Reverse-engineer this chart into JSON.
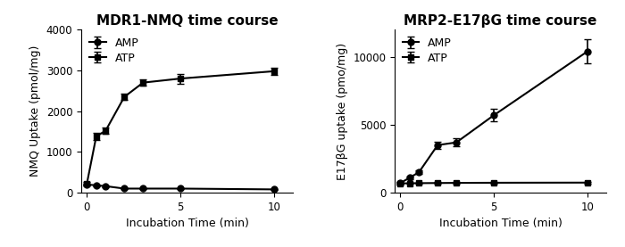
{
  "left_title": "MDR1-NMQ time course",
  "right_title": "MRP2-E17βG time course",
  "left_xlabel": "Incubation Time (min)",
  "right_xlabel": "Incubation Time (min)",
  "left_ylabel": "NMQ Uptake (pmol/mg)",
  "right_ylabel": "E17βG uptake (pmo/mg)",
  "left_AMP_x": [
    0,
    0.5,
    1,
    2,
    3,
    5,
    10
  ],
  "left_AMP_y": [
    200,
    180,
    160,
    100,
    100,
    100,
    80
  ],
  "left_AMP_err": [
    30,
    25,
    20,
    15,
    15,
    15,
    15
  ],
  "left_ATP_x": [
    0,
    0.5,
    1,
    2,
    3,
    5,
    10
  ],
  "left_ATP_y": [
    220,
    1380,
    1520,
    2350,
    2700,
    2800,
    2980
  ],
  "left_ATP_err": [
    40,
    80,
    80,
    80,
    80,
    120,
    80
  ],
  "left_ylim": [
    0,
    4000
  ],
  "left_yticks": [
    0,
    1000,
    2000,
    3000,
    4000
  ],
  "left_xlim": [
    -0.3,
    11
  ],
  "left_xticks": [
    0,
    5,
    10
  ],
  "right_AMP_x": [
    0,
    0.5,
    1,
    2,
    3,
    5,
    10
  ],
  "right_AMP_y": [
    700,
    1100,
    1500,
    3500,
    3700,
    5700,
    10400
  ],
  "right_AMP_err": [
    100,
    100,
    150,
    250,
    300,
    450,
    900
  ],
  "right_ATP_x": [
    0,
    0.5,
    1,
    2,
    3,
    5,
    10
  ],
  "right_ATP_y": [
    680,
    690,
    700,
    710,
    720,
    730,
    740
  ],
  "right_ATP_err": [
    70,
    60,
    55,
    55,
    55,
    55,
    55
  ],
  "right_ylim": [
    0,
    12000
  ],
  "right_yticks": [
    0,
    5000,
    10000
  ],
  "right_xlim": [
    -0.3,
    11
  ],
  "right_xticks": [
    0,
    5,
    10
  ],
  "line_color": "#000000",
  "marker_circle": "o",
  "marker_square": "s",
  "markersize": 5,
  "linewidth": 1.5,
  "capsize": 3,
  "elinewidth": 1.2,
  "title_fontsize": 11,
  "label_fontsize": 9,
  "tick_fontsize": 8.5,
  "legend_fontsize": 9
}
